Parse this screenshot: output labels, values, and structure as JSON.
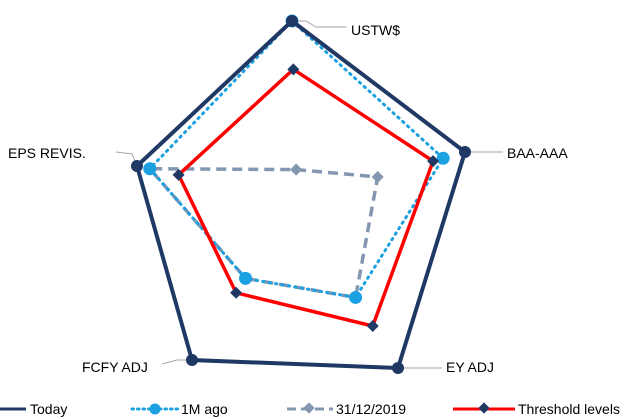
{
  "chart_data": {
    "type": "radar",
    "axes": [
      "USTW$",
      "BAA-AAA",
      "EY ADJ",
      "FCFY ADJ",
      "EPS REVIS."
    ],
    "rmax": 1.0,
    "series": [
      {
        "name": "Today",
        "values": [
          1.0,
          1.0,
          1.0,
          1.0,
          1.0
        ],
        "color": "#1f3864",
        "style": "solid",
        "marker": "circle"
      },
      {
        "name": "1M ago",
        "values": [
          1.0,
          0.87,
          0.58,
          0.49,
          0.92
        ],
        "color": "#1ba1e2",
        "style": "dotted",
        "marker": "circle"
      },
      {
        "name": "31/12/2019",
        "values": [
          0.17,
          0.48,
          0.58,
          0.49,
          0.92
        ],
        "color": "#8497b0",
        "style": "dashed",
        "marker": "diamond"
      },
      {
        "name": "Threshold levels",
        "values": [
          0.73,
          0.81,
          0.75,
          0.58,
          0.74
        ],
        "color": "#ff0000",
        "style": "solid",
        "marker": "diamond"
      }
    ],
    "legend": "bottom"
  }
}
